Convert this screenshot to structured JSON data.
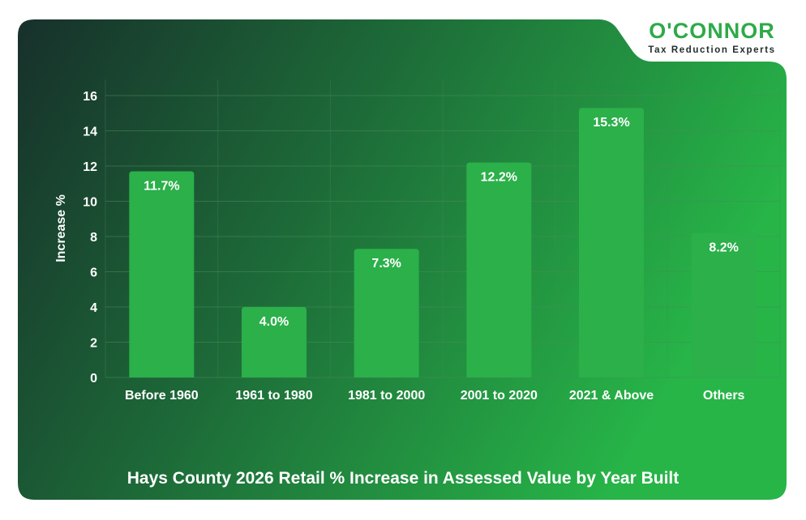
{
  "brand": {
    "name": "O'CONNOR",
    "tagline": "Tax Reduction Experts"
  },
  "colors": {
    "bg_dark": "#17302b",
    "bg_bright": "#27b548",
    "bar": "#2bb04a",
    "grid": "#4a8a5a",
    "text": "#ffffff",
    "brand_green": "#2eaa49"
  },
  "chart_data": {
    "type": "bar",
    "title": "Hays County 2026 Retail % Increase in Assessed Value by Year Built",
    "xlabel": "",
    "ylabel": "Increase %",
    "ylim": [
      0,
      16
    ],
    "yticks": [
      0,
      2,
      4,
      6,
      8,
      10,
      12,
      14,
      16
    ],
    "grid": true,
    "categories": [
      "Before 1960",
      "1961 to 1980",
      "1981 to 2000",
      "2001 to 2020",
      "2021 & Above",
      "Others"
    ],
    "values": [
      11.7,
      4.0,
      7.3,
      12.2,
      15.3,
      8.2
    ],
    "value_labels": [
      "11.7%",
      "4.0%",
      "7.3%",
      "12.2%",
      "15.3%",
      "8.2%"
    ]
  }
}
